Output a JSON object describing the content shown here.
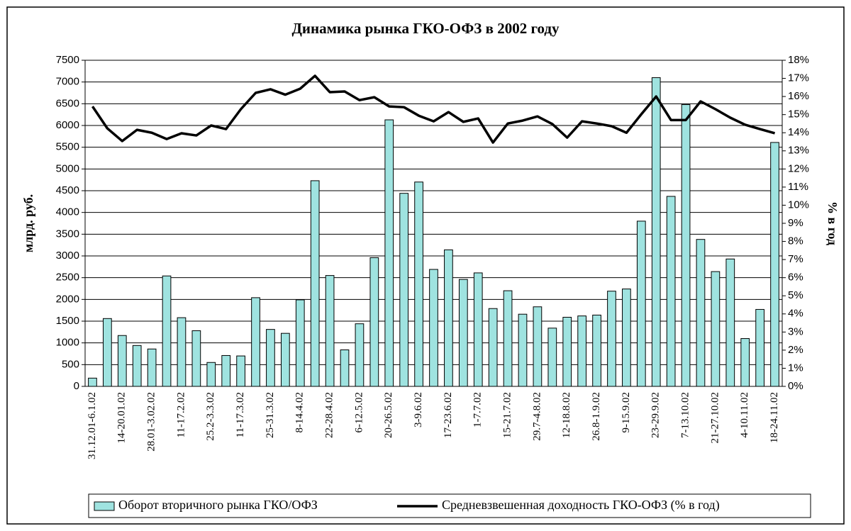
{
  "chart_data": {
    "type": "bar",
    "title": "Динамика рынка ГКО-ОФЗ в 2002 году",
    "y_label": "млрд. руб.",
    "y2_label": "% в год",
    "categories": [
      "31.12.01-6.1.02",
      null,
      "14-20.01.02",
      null,
      "28.01-3.02.02",
      null,
      "11-17.2.02",
      null,
      "25.2-3.3.02",
      null,
      "11-17.3.02",
      null,
      "25-31.3.02",
      null,
      "8-14.4.02",
      null,
      "22-28.4.02",
      null,
      "6-12.5.02",
      null,
      "20-26.5.02",
      null,
      "3-9.6.02",
      null,
      "17-23.6.02",
      null,
      "1-7.7.02",
      null,
      "15-21.7.02",
      null,
      "29.7-4.8.02",
      null,
      "12-18.8.02",
      null,
      "26.8-1.9.02",
      null,
      "9-15.9.02",
      null,
      "23-29.9.02",
      null,
      "7-13.10.02",
      null,
      "21-27.10.02",
      null,
      "4-10.11.02",
      null,
      "18-24.11.02"
    ],
    "series": [
      {
        "name": "Оборот вторичного рынка ГКО/ОФЗ",
        "type": "bar",
        "color": "#9fe3e0",
        "values": [
          190,
          1560,
          1170,
          940,
          860,
          2540,
          1580,
          1280,
          550,
          710,
          700,
          2040,
          1310,
          1220,
          1990,
          4730,
          2550,
          840,
          1440,
          2960,
          6130,
          4440,
          4700,
          2690,
          3140,
          2460,
          2610,
          1790,
          2200,
          1660,
          1830,
          1340,
          1590,
          1620,
          1640,
          2190,
          2240,
          3800,
          7100,
          4370,
          6480,
          3380,
          2640,
          2930,
          1100,
          1770,
          5610
        ]
      },
      {
        "name": "Средневзвешенная доходность ГКО-ОФЗ (% в год)",
        "type": "line",
        "axis": "y2",
        "color": "#000000",
        "values": [
          15.45,
          14.24,
          13.54,
          14.16,
          14.0,
          13.65,
          13.97,
          13.85,
          14.4,
          14.2,
          15.3,
          16.2,
          16.4,
          16.1,
          16.43,
          17.14,
          16.24,
          16.28,
          15.8,
          15.96,
          15.45,
          15.41,
          14.94,
          14.63,
          15.14,
          14.6,
          14.79,
          13.46,
          14.51,
          14.67,
          14.9,
          14.48,
          13.73,
          14.63,
          14.51,
          14.36,
          14.0,
          15.02,
          16.0,
          14.7,
          14.7,
          15.73,
          15.3,
          14.83,
          14.44,
          14.2,
          13.97
        ]
      }
    ],
    "ylim": [
      0,
      7500
    ],
    "yticks": [
      0,
      500,
      1000,
      1500,
      2000,
      2500,
      3000,
      3500,
      4000,
      4500,
      5000,
      5500,
      6000,
      6500,
      7000,
      7500
    ],
    "y2lim": [
      0,
      18
    ],
    "y2ticks": [
      {
        "value": 0,
        "label": "0%"
      },
      {
        "value": 1,
        "label": "1%"
      },
      {
        "value": 2,
        "label": "2%"
      },
      {
        "value": 3,
        "label": "3%"
      },
      {
        "value": 4,
        "label": "4%"
      },
      {
        "value": 5,
        "label": "5%"
      },
      {
        "value": 6,
        "label": "6%"
      },
      {
        "value": 7,
        "label": "7%"
      },
      {
        "value": 8,
        "label": "8%"
      },
      {
        "value": 9,
        "label": "9%"
      },
      {
        "value": 10,
        "label": "10%"
      },
      {
        "value": 11,
        "label": "11%"
      },
      {
        "value": 12,
        "label": "12%"
      },
      {
        "value": 13,
        "label": "13%"
      },
      {
        "value": 14,
        "label": "14%"
      },
      {
        "value": 15,
        "label": "15%"
      },
      {
        "value": 16,
        "label": "16%"
      },
      {
        "value": 17,
        "label": "17%"
      },
      {
        "value": 18,
        "label": "18%"
      }
    ],
    "grid": true,
    "legend": "bottom"
  }
}
